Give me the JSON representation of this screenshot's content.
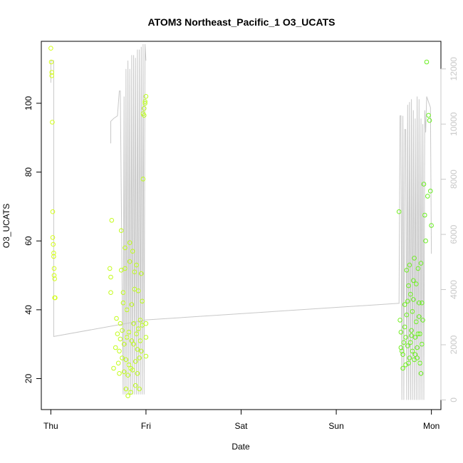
{
  "chart_data": {
    "type": "scatter",
    "title": "ATOM3 Northeast_Pacific_1 O3_UCATS",
    "xlabel": "Date",
    "ylabel": "O3_UCATS",
    "x_ticks": [
      "Thu",
      "Fri",
      "Sat",
      "Sun",
      "Mon"
    ],
    "xlim": [
      -0.1,
      4.1
    ],
    "ylim": [
      11,
      118
    ],
    "y_ticks": [
      20,
      40,
      60,
      80,
      100
    ],
    "y2lim": [
      -350,
      13000
    ],
    "y2_ticks": [
      0,
      2000,
      4000,
      6000,
      8000,
      10000,
      12000
    ],
    "colors": {
      "frame": "#000000",
      "secondary_line": "#c8c8c8",
      "points_start": "#d8ff1a",
      "points_end": "#66ee22"
    },
    "series": [
      {
        "kind": "points",
        "axis": "left",
        "x": [
          0.0,
          0.005,
          0.01,
          0.01,
          0.015,
          0.02,
          0.02,
          0.025,
          0.03,
          0.03,
          0.035,
          0.035,
          0.04,
          0.04,
          0.045,
          0.62,
          0.63,
          0.63,
          0.64,
          0.66,
          0.68,
          0.69,
          0.7,
          0.71,
          0.72,
          0.72,
          0.73,
          0.73,
          0.74,
          0.74,
          0.75,
          0.75,
          0.76,
          0.76,
          0.77,
          0.77,
          0.78,
          0.78,
          0.79,
          0.79,
          0.8,
          0.8,
          0.81,
          0.81,
          0.82,
          0.82,
          0.83,
          0.83,
          0.84,
          0.84,
          0.85,
          0.85,
          0.86,
          0.86,
          0.87,
          0.87,
          0.88,
          0.88,
          0.89,
          0.89,
          0.9,
          0.9,
          0.91,
          0.91,
          0.92,
          0.92,
          0.93,
          0.93,
          0.94,
          0.94,
          0.95,
          0.95,
          0.96,
          0.96,
          0.97,
          0.97,
          0.98,
          0.98,
          0.99,
          0.99,
          1.0,
          1.0,
          1.0,
          1.0,
          3.66,
          3.67,
          3.68,
          3.68,
          3.69,
          3.7,
          3.7,
          3.71,
          3.72,
          3.72,
          3.73,
          3.73,
          3.74,
          3.74,
          3.75,
          3.75,
          3.76,
          3.76,
          3.77,
          3.77,
          3.78,
          3.78,
          3.79,
          3.79,
          3.8,
          3.8,
          3.81,
          3.81,
          3.82,
          3.82,
          3.83,
          3.83,
          3.84,
          3.84,
          3.85,
          3.85,
          3.86,
          3.86,
          3.87,
          3.87,
          3.88,
          3.88,
          3.89,
          3.89,
          3.9,
          3.9,
          3.91,
          3.92,
          3.93,
          3.94,
          3.95,
          3.96,
          3.97,
          3.98,
          3.99,
          4.0
        ],
        "y": [
          116,
          112,
          109,
          108,
          94.5,
          68.5,
          61,
          59,
          56.5,
          55.5,
          52,
          50,
          49,
          43.5,
          43.5,
          52,
          49.5,
          45,
          66,
          23,
          29,
          37.5,
          33,
          24.5,
          21.5,
          28,
          31.5,
          36,
          51.5,
          63,
          26,
          34,
          42,
          45,
          22,
          30,
          52,
          58,
          17,
          25.5,
          32,
          40,
          15,
          21,
          24,
          33.5,
          54,
          59.5,
          16,
          23,
          31,
          41.5,
          57,
          22.5,
          30,
          36,
          46,
          51,
          18,
          25,
          33,
          53,
          21.5,
          28.5,
          34.5,
          45.5,
          17,
          26,
          31,
          37,
          50.5,
          28,
          35.5,
          42.5,
          78,
          97,
          96.5,
          98.5,
          100,
          100.5,
          102,
          32,
          26.5,
          36,
          68.5,
          37,
          33.5,
          29,
          28,
          27,
          23,
          30.5,
          35,
          41.5,
          24,
          32,
          51.5,
          38.5,
          42.5,
          29.5,
          47,
          24.5,
          53,
          26,
          30.5,
          44.5,
          34,
          32.5,
          28,
          39.5,
          43,
          48.5,
          55,
          25.5,
          27,
          32,
          36.5,
          47.5,
          26,
          29,
          33,
          52,
          38,
          42,
          33,
          24.5,
          21.5,
          53.5,
          30,
          42,
          37,
          76.5,
          67.5,
          60,
          112,
          73,
          96.5,
          95,
          74.5,
          64.5
        ]
      },
      {
        "kind": "line",
        "axis": "right",
        "x": [
          0.0,
          0.0,
          0.03,
          0.03,
          1.0,
          1.0,
          3.65,
          3.66,
          3.67,
          3.68,
          3.69,
          3.7,
          3.71,
          3.72,
          3.73,
          3.74,
          3.75,
          3.76,
          3.77,
          3.78,
          3.79,
          3.8,
          3.81,
          3.82,
          3.83,
          3.84,
          3.85,
          3.86,
          3.87,
          3.88,
          3.89,
          3.9,
          3.91,
          3.92,
          3.93,
          3.94,
          3.95,
          3.96,
          3.97,
          3.98,
          3.99,
          4.0
        ],
        "y": [
          11500,
          12300,
          12300,
          2300,
          2900,
          2900,
          3500,
          3500,
          10300,
          10300,
          0,
          10300,
          0,
          9800,
          9800,
          0,
          10700,
          0,
          10800,
          0,
          10900,
          0,
          10500,
          0,
          10200,
          0,
          11000,
          0,
          10900,
          0,
          10200,
          0,
          10000,
          0,
          10500,
          9700,
          11000,
          10900,
          10800,
          10700,
          10600,
          5300
        ]
      },
      {
        "kind": "line",
        "axis": "right",
        "x": [
          0.63,
          0.63,
          0.66,
          0.7,
          0.72,
          0.73,
          0.76,
          0.77,
          0.78,
          0.79,
          0.8,
          0.81,
          0.82,
          0.83,
          0.84,
          0.85,
          0.86,
          0.87,
          0.88,
          0.89,
          0.9,
          0.91,
          0.92,
          0.93,
          0.94,
          0.95,
          0.96,
          0.97,
          0.98,
          0.99,
          1.0
        ],
        "y": [
          9300,
          10100,
          10200,
          10300,
          11200,
          11200,
          200,
          11000,
          200,
          12000,
          200,
          12300,
          200,
          12000,
          200,
          12500,
          200,
          12500,
          200,
          12400,
          200,
          12700,
          200,
          12700,
          200,
          12800,
          200,
          12900,
          200,
          12900,
          12300
        ]
      }
    ]
  }
}
